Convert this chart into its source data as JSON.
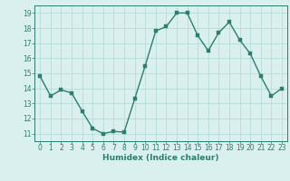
{
  "x": [
    0,
    1,
    2,
    3,
    4,
    5,
    6,
    7,
    8,
    9,
    10,
    11,
    12,
    13,
    14,
    15,
    16,
    17,
    18,
    19,
    20,
    21,
    22,
    23
  ],
  "y": [
    14.8,
    13.5,
    13.9,
    13.7,
    12.5,
    11.35,
    11.0,
    11.15,
    11.1,
    13.3,
    15.5,
    17.8,
    18.1,
    19.0,
    19.0,
    17.5,
    16.5,
    17.7,
    18.4,
    17.2,
    16.3,
    14.8,
    13.5,
    14.0
  ],
  "line_color": "#2e7d6e",
  "marker_color": "#2e7d6e",
  "bg_color": "#d9f0ef",
  "grid_color": "#b0d8d4",
  "xlabel": "Humidex (Indice chaleur)",
  "xlim": [
    -0.5,
    23.5
  ],
  "ylim": [
    10.5,
    19.5
  ],
  "yticks": [
    11,
    12,
    13,
    14,
    15,
    16,
    17,
    18,
    19
  ],
  "xticks": [
    0,
    1,
    2,
    3,
    4,
    5,
    6,
    7,
    8,
    9,
    10,
    11,
    12,
    13,
    14,
    15,
    16,
    17,
    18,
    19,
    20,
    21,
    22,
    23
  ],
  "tick_color": "#2e7d6e",
  "label_fontsize": 6.5,
  "tick_fontsize": 5.5,
  "marker_size": 2.2,
  "line_width": 1.0
}
